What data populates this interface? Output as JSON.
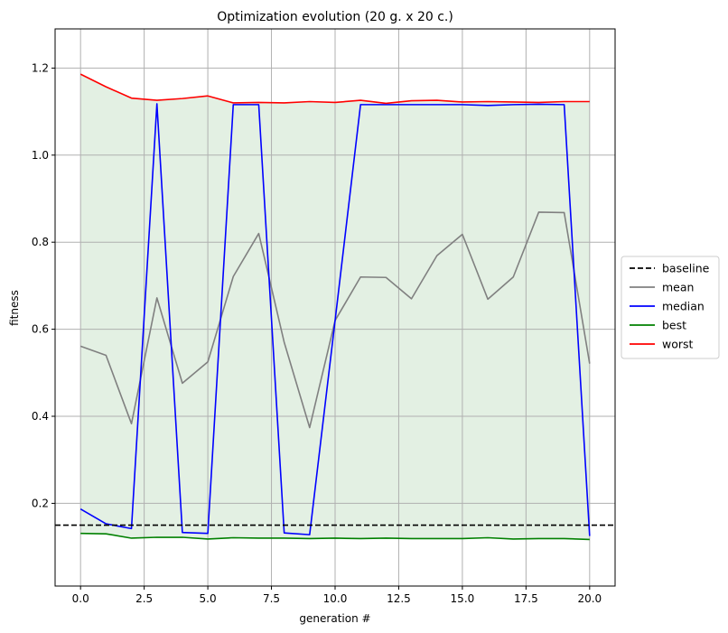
{
  "chart_data": {
    "type": "line",
    "title": "Optimization evolution (20 g. x 20 c.)",
    "xlabel": "generation #",
    "ylabel": "fitness",
    "xlim": [
      -1,
      21
    ],
    "ylim": [
      0.01,
      1.29
    ],
    "xticks": [
      0.0,
      2.5,
      5.0,
      7.5,
      10.0,
      12.5,
      15.0,
      17.5,
      20.0
    ],
    "xtick_labels": [
      "0.0",
      "2.5",
      "5.0",
      "7.5",
      "10.0",
      "12.5",
      "15.0",
      "17.5",
      "20.0"
    ],
    "yticks": [
      0.2,
      0.4,
      0.6,
      0.8,
      1.0,
      1.2
    ],
    "ytick_labels": [
      "0.2",
      "0.4",
      "0.6",
      "0.8",
      "1.0",
      "1.2"
    ],
    "grid": true,
    "legend_position": "outside-right",
    "x": [
      0,
      1,
      2,
      3,
      4,
      5,
      6,
      7,
      8,
      9,
      10,
      11,
      12,
      13,
      14,
      15,
      16,
      17,
      18,
      19,
      20
    ],
    "baseline": 0.15,
    "fill_between": {
      "lower": "best",
      "upper": "worst",
      "color": "#e3f0e3"
    },
    "series": [
      {
        "name": "baseline",
        "color": "#000000",
        "dashed": true
      },
      {
        "name": "mean",
        "color": "#808080",
        "values": [
          0.561,
          0.54,
          0.383,
          0.672,
          0.476,
          0.525,
          0.721,
          0.82,
          0.57,
          0.374,
          0.62,
          0.72,
          0.719,
          0.67,
          0.769,
          0.818,
          0.669,
          0.72,
          0.869,
          0.868,
          0.521
        ]
      },
      {
        "name": "median",
        "color": "#0000ff",
        "values": [
          0.187,
          0.153,
          0.142,
          1.118,
          0.133,
          0.131,
          1.116,
          1.116,
          0.132,
          0.128,
          0.62,
          1.116,
          1.116,
          1.116,
          1.116,
          1.116,
          1.114,
          1.116,
          1.117,
          1.116,
          0.125
        ]
      },
      {
        "name": "best",
        "color": "#008000",
        "values": [
          0.131,
          0.13,
          0.12,
          0.122,
          0.122,
          0.118,
          0.121,
          0.12,
          0.12,
          0.119,
          0.12,
          0.119,
          0.12,
          0.119,
          0.119,
          0.119,
          0.121,
          0.118,
          0.119,
          0.119,
          0.117
        ]
      },
      {
        "name": "worst",
        "color": "#ff0000",
        "values": [
          1.186,
          1.157,
          1.131,
          1.126,
          1.13,
          1.136,
          1.12,
          1.121,
          1.12,
          1.123,
          1.121,
          1.126,
          1.119,
          1.125,
          1.126,
          1.122,
          1.123,
          1.122,
          1.121,
          1.123,
          1.123
        ]
      }
    ]
  }
}
